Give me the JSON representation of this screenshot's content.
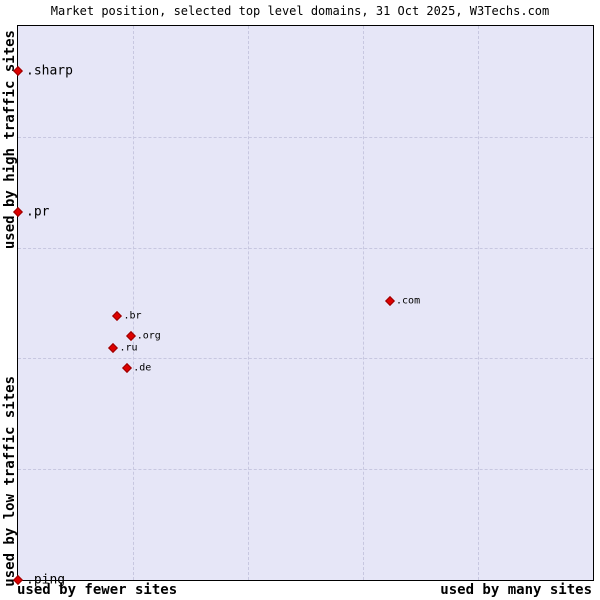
{
  "title": "Market position, selected top level domains, 31 Oct 2025, W3Techs.com",
  "axis_labels": {
    "y_top": "used by high traffic sites",
    "y_bottom": "used by low traffic sites",
    "x_left": "used by fewer sites",
    "x_right": "used by many sites"
  },
  "colors": {
    "plot_bg": "#e6e6f7",
    "marker": "#dd0000",
    "marker_border": "#990000",
    "grid": "#c7c7e0"
  },
  "chart_data": {
    "type": "scatter",
    "title": "Market position, selected top level domains, 31 Oct 2025, W3Techs.com",
    "x_axis": {
      "left_label": "used by fewer sites",
      "right_label": "used by many sites",
      "range_pct": [
        0,
        100
      ]
    },
    "y_axis": {
      "top_label": "used by high traffic sites",
      "bottom_label": "used by low traffic sites",
      "range_pct": [
        0,
        100
      ]
    },
    "grid": {
      "style": "dashed",
      "x_pct": [
        20,
        40,
        60,
        80
      ],
      "y_pct": [
        20,
        40,
        60,
        80
      ]
    },
    "marker_shape": "diamond",
    "points": [
      {
        "label": ".sharp",
        "x_pct": 0,
        "y_pct": 91.9,
        "emphasis": true
      },
      {
        "label": ".pr",
        "x_pct": 0,
        "y_pct": 66.4,
        "emphasis": true
      },
      {
        "label": ".br",
        "x_pct": 17.3,
        "y_pct": 47.7,
        "emphasis": false
      },
      {
        "label": ".org",
        "x_pct": 19.6,
        "y_pct": 44.1,
        "emphasis": false
      },
      {
        "label": ".ru",
        "x_pct": 16.6,
        "y_pct": 41.9,
        "emphasis": false
      },
      {
        "label": ".de",
        "x_pct": 19.0,
        "y_pct": 38.3,
        "emphasis": false
      },
      {
        "label": ".com",
        "x_pct": 64.7,
        "y_pct": 50.4,
        "emphasis": false
      },
      {
        "label": ".ping",
        "x_pct": 0,
        "y_pct": 0,
        "emphasis": true
      }
    ]
  }
}
